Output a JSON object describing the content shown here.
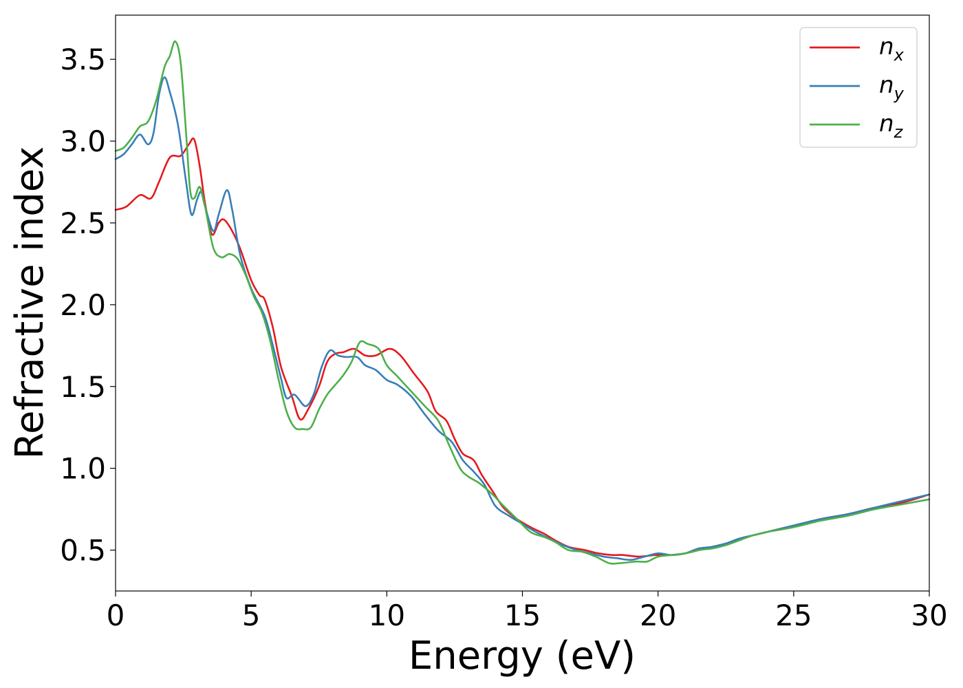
{
  "chart_data": {
    "type": "line",
    "xlabel": "Energy (eV)",
    "ylabel": "Refractive index",
    "xlim": [
      0,
      30
    ],
    "ylim": [
      0.25,
      3.77
    ],
    "xticks": [
      0,
      5,
      10,
      15,
      20,
      25,
      30
    ],
    "yticks": [
      0.5,
      1.0,
      1.5,
      2.0,
      2.5,
      3.0,
      3.5
    ],
    "xtick_labels": [
      "0",
      "5",
      "10",
      "15",
      "20",
      "25",
      "30"
    ],
    "ytick_labels": [
      "0.5",
      "1.0",
      "1.5",
      "2.0",
      "2.5",
      "3.0",
      "3.5"
    ],
    "grid": false,
    "legend_position": "top-right",
    "series": [
      {
        "name": "n_x",
        "legend_base": "n",
        "legend_sub": "x",
        "color": "#e41a1c",
        "points": [
          [
            0,
            2.58
          ],
          [
            0.4,
            2.6
          ],
          [
            0.9,
            2.67
          ],
          [
            1.3,
            2.65
          ],
          [
            1.6,
            2.75
          ],
          [
            2.0,
            2.9
          ],
          [
            2.4,
            2.91
          ],
          [
            2.7,
            2.98
          ],
          [
            2.9,
            3.01
          ],
          [
            3.1,
            2.85
          ],
          [
            3.3,
            2.62
          ],
          [
            3.55,
            2.43
          ],
          [
            3.8,
            2.5
          ],
          [
            4.0,
            2.52
          ],
          [
            4.3,
            2.45
          ],
          [
            4.6,
            2.34
          ],
          [
            5.0,
            2.15
          ],
          [
            5.3,
            2.06
          ],
          [
            5.5,
            2.03
          ],
          [
            5.8,
            1.86
          ],
          [
            6.1,
            1.62
          ],
          [
            6.5,
            1.44
          ],
          [
            6.8,
            1.3
          ],
          [
            7.1,
            1.36
          ],
          [
            7.5,
            1.5
          ],
          [
            7.8,
            1.65
          ],
          [
            8.1,
            1.7
          ],
          [
            8.4,
            1.71
          ],
          [
            8.8,
            1.73
          ],
          [
            9.2,
            1.69
          ],
          [
            9.6,
            1.69
          ],
          [
            10.1,
            1.73
          ],
          [
            10.5,
            1.69
          ],
          [
            11.0,
            1.58
          ],
          [
            11.5,
            1.47
          ],
          [
            11.8,
            1.35
          ],
          [
            12.2,
            1.29
          ],
          [
            12.5,
            1.18
          ],
          [
            12.8,
            1.09
          ],
          [
            13.2,
            1.05
          ],
          [
            13.5,
            0.96
          ],
          [
            13.9,
            0.86
          ],
          [
            14.3,
            0.76
          ],
          [
            14.8,
            0.69
          ],
          [
            15.3,
            0.64
          ],
          [
            15.8,
            0.6
          ],
          [
            16.2,
            0.56
          ],
          [
            16.7,
            0.52
          ],
          [
            17.3,
            0.5
          ],
          [
            17.8,
            0.48
          ],
          [
            18.3,
            0.47
          ],
          [
            18.7,
            0.47
          ],
          [
            19.3,
            0.46
          ],
          [
            19.9,
            0.47
          ],
          [
            20.5,
            0.47
          ],
          [
            21.0,
            0.48
          ],
          [
            21.5,
            0.5
          ],
          [
            22.0,
            0.52
          ],
          [
            22.5,
            0.54
          ],
          [
            23.0,
            0.57
          ],
          [
            23.5,
            0.59
          ],
          [
            24.0,
            0.61
          ],
          [
            25.0,
            0.65
          ],
          [
            26.0,
            0.69
          ],
          [
            27.0,
            0.72
          ],
          [
            28.0,
            0.76
          ],
          [
            29.0,
            0.79
          ],
          [
            30.0,
            0.84
          ]
        ]
      },
      {
        "name": "n_y",
        "legend_base": "n",
        "legend_sub": "y",
        "color": "#377eb8",
        "points": [
          [
            0,
            2.89
          ],
          [
            0.3,
            2.92
          ],
          [
            0.6,
            2.98
          ],
          [
            0.9,
            3.04
          ],
          [
            1.2,
            2.98
          ],
          [
            1.4,
            3.05
          ],
          [
            1.6,
            3.28
          ],
          [
            1.8,
            3.39
          ],
          [
            2.0,
            3.3
          ],
          [
            2.3,
            3.1
          ],
          [
            2.6,
            2.75
          ],
          [
            2.8,
            2.55
          ],
          [
            3.0,
            2.64
          ],
          [
            3.15,
            2.69
          ],
          [
            3.3,
            2.6
          ],
          [
            3.6,
            2.45
          ],
          [
            3.8,
            2.55
          ],
          [
            4.1,
            2.7
          ],
          [
            4.3,
            2.58
          ],
          [
            4.6,
            2.3
          ],
          [
            5.0,
            2.1
          ],
          [
            5.5,
            1.93
          ],
          [
            5.8,
            1.75
          ],
          [
            6.1,
            1.55
          ],
          [
            6.3,
            1.43
          ],
          [
            6.6,
            1.45
          ],
          [
            7.0,
            1.38
          ],
          [
            7.3,
            1.45
          ],
          [
            7.6,
            1.62
          ],
          [
            7.9,
            1.72
          ],
          [
            8.2,
            1.69
          ],
          [
            8.5,
            1.68
          ],
          [
            8.9,
            1.68
          ],
          [
            9.2,
            1.63
          ],
          [
            9.6,
            1.6
          ],
          [
            10.0,
            1.54
          ],
          [
            10.4,
            1.51
          ],
          [
            10.9,
            1.44
          ],
          [
            11.4,
            1.33
          ],
          [
            11.9,
            1.23
          ],
          [
            12.4,
            1.16
          ],
          [
            12.8,
            1.05
          ],
          [
            13.2,
            0.98
          ],
          [
            13.6,
            0.9
          ],
          [
            14.0,
            0.77
          ],
          [
            14.5,
            0.71
          ],
          [
            15.0,
            0.66
          ],
          [
            15.5,
            0.61
          ],
          [
            16.0,
            0.57
          ],
          [
            16.5,
            0.53
          ],
          [
            17.0,
            0.5
          ],
          [
            17.5,
            0.48
          ],
          [
            18.0,
            0.46
          ],
          [
            18.5,
            0.45
          ],
          [
            19.0,
            0.44
          ],
          [
            19.5,
            0.46
          ],
          [
            20.0,
            0.48
          ],
          [
            20.5,
            0.47
          ],
          [
            21.0,
            0.48
          ],
          [
            21.5,
            0.51
          ],
          [
            22.0,
            0.52
          ],
          [
            22.5,
            0.54
          ],
          [
            23.0,
            0.57
          ],
          [
            23.5,
            0.59
          ],
          [
            24.0,
            0.61
          ],
          [
            25.0,
            0.65
          ],
          [
            26.0,
            0.69
          ],
          [
            27.0,
            0.72
          ],
          [
            28.0,
            0.76
          ],
          [
            29.0,
            0.8
          ],
          [
            30.0,
            0.84
          ]
        ]
      },
      {
        "name": "n_z",
        "legend_base": "n",
        "legend_sub": "z",
        "color": "#4daf4a",
        "points": [
          [
            0,
            2.94
          ],
          [
            0.3,
            2.96
          ],
          [
            0.6,
            3.02
          ],
          [
            0.9,
            3.09
          ],
          [
            1.2,
            3.12
          ],
          [
            1.5,
            3.25
          ],
          [
            1.8,
            3.45
          ],
          [
            2.0,
            3.52
          ],
          [
            2.2,
            3.61
          ],
          [
            2.4,
            3.48
          ],
          [
            2.6,
            3.05
          ],
          [
            2.75,
            2.7
          ],
          [
            2.9,
            2.65
          ],
          [
            3.1,
            2.72
          ],
          [
            3.3,
            2.6
          ],
          [
            3.6,
            2.35
          ],
          [
            3.9,
            2.29
          ],
          [
            4.2,
            2.31
          ],
          [
            4.5,
            2.28
          ],
          [
            4.8,
            2.18
          ],
          [
            5.1,
            2.05
          ],
          [
            5.4,
            1.95
          ],
          [
            5.7,
            1.78
          ],
          [
            6.0,
            1.55
          ],
          [
            6.3,
            1.35
          ],
          [
            6.6,
            1.25
          ],
          [
            6.9,
            1.24
          ],
          [
            7.2,
            1.25
          ],
          [
            7.5,
            1.36
          ],
          [
            7.8,
            1.45
          ],
          [
            8.1,
            1.51
          ],
          [
            8.4,
            1.57
          ],
          [
            8.7,
            1.65
          ],
          [
            9.0,
            1.77
          ],
          [
            9.3,
            1.76
          ],
          [
            9.7,
            1.73
          ],
          [
            10.0,
            1.63
          ],
          [
            10.4,
            1.56
          ],
          [
            10.9,
            1.47
          ],
          [
            11.4,
            1.38
          ],
          [
            11.9,
            1.29
          ],
          [
            12.3,
            1.14
          ],
          [
            12.7,
            1.0
          ],
          [
            13.0,
            0.95
          ],
          [
            13.4,
            0.91
          ],
          [
            13.9,
            0.84
          ],
          [
            14.3,
            0.77
          ],
          [
            14.8,
            0.69
          ],
          [
            15.3,
            0.61
          ],
          [
            15.8,
            0.58
          ],
          [
            16.2,
            0.55
          ],
          [
            16.7,
            0.5
          ],
          [
            17.2,
            0.49
          ],
          [
            17.7,
            0.46
          ],
          [
            18.2,
            0.42
          ],
          [
            18.6,
            0.42
          ],
          [
            19.2,
            0.43
          ],
          [
            19.6,
            0.43
          ],
          [
            20.0,
            0.46
          ],
          [
            20.5,
            0.47
          ],
          [
            21.0,
            0.48
          ],
          [
            21.5,
            0.5
          ],
          [
            22.0,
            0.51
          ],
          [
            22.5,
            0.53
          ],
          [
            23.0,
            0.56
          ],
          [
            23.5,
            0.59
          ],
          [
            24.0,
            0.61
          ],
          [
            25.0,
            0.64
          ],
          [
            26.0,
            0.68
          ],
          [
            27.0,
            0.71
          ],
          [
            28.0,
            0.75
          ],
          [
            29.0,
            0.78
          ],
          [
            30.0,
            0.81
          ]
        ]
      }
    ]
  }
}
